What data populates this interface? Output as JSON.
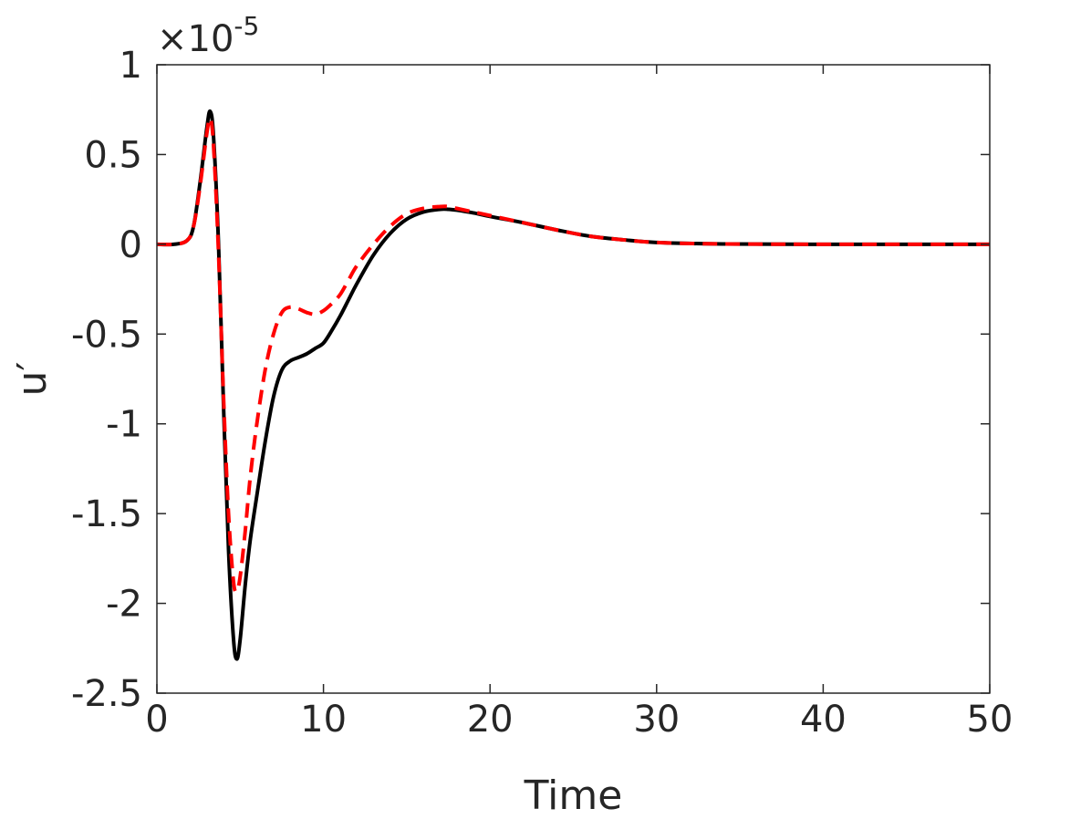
{
  "chart_data": {
    "type": "line",
    "xlabel": "Time",
    "ylabel": "u′",
    "xlim": [
      0,
      50
    ],
    "ylim": [
      -2.5,
      1
    ],
    "y_scale_factor": "×10",
    "y_scale_exponent": "-5",
    "x_ticks": [
      0,
      10,
      20,
      30,
      40,
      50
    ],
    "x_tick_labels": [
      "0",
      "10",
      "20",
      "30",
      "40",
      "50"
    ],
    "y_ticks": [
      1,
      0.5,
      0,
      -0.5,
      -1,
      -1.5,
      -2,
      -2.5
    ],
    "y_tick_labels": [
      "1",
      "0.5",
      "0",
      "-0.5",
      "-1",
      "-1.5",
      "-2",
      "-2.5"
    ],
    "grid": false,
    "legend": null,
    "series": [
      {
        "color": "#000000",
        "style": "solid",
        "x": [
          0,
          1,
          1.8,
          2.2,
          2.6,
          3.0,
          3.2,
          3.4,
          3.7,
          4.0,
          4.3,
          4.6,
          4.8,
          5.0,
          5.3,
          5.6,
          6.0,
          6.5,
          7.0,
          7.5,
          8.0,
          8.5,
          9.0,
          9.5,
          10.0,
          10.5,
          11.0,
          11.5,
          12.0,
          13.0,
          14.0,
          15.0,
          16.0,
          17.0,
          17.5,
          18.0,
          19.0,
          20.0,
          22.0,
          24.0,
          26.0,
          28.0,
          30.0,
          33.0,
          36.0,
          40.0,
          45.0,
          50.0
        ],
        "y": [
          0,
          0,
          0.02,
          0.1,
          0.35,
          0.65,
          0.74,
          0.6,
          0.0,
          -0.9,
          -1.7,
          -2.2,
          -2.31,
          -2.2,
          -1.9,
          -1.65,
          -1.4,
          -1.1,
          -0.85,
          -0.7,
          -0.65,
          -0.63,
          -0.61,
          -0.58,
          -0.55,
          -0.48,
          -0.4,
          -0.31,
          -0.22,
          -0.06,
          0.06,
          0.14,
          0.18,
          0.195,
          0.195,
          0.19,
          0.175,
          0.155,
          0.12,
          0.08,
          0.045,
          0.025,
          0.01,
          0.003,
          0.001,
          0.0,
          0.0,
          0.0
        ]
      },
      {
        "color": "#ff0000",
        "style": "dashed",
        "x": [
          0,
          1,
          1.8,
          2.2,
          2.6,
          3.0,
          3.2,
          3.4,
          3.7,
          4.0,
          4.3,
          4.6,
          4.8,
          5.0,
          5.3,
          5.6,
          6.0,
          6.5,
          7.0,
          7.5,
          8.0,
          8.5,
          9.0,
          9.5,
          10.0,
          10.5,
          11.0,
          11.5,
          12.0,
          13.0,
          14.0,
          15.0,
          16.0,
          17.0,
          17.5,
          18.0,
          19.0,
          20.0,
          22.0,
          24.0,
          26.0,
          28.0,
          30.0,
          33.0,
          36.0,
          40.0,
          45.0,
          50.0
        ],
        "y": [
          0,
          0,
          0.02,
          0.1,
          0.33,
          0.62,
          0.7,
          0.55,
          -0.05,
          -0.85,
          -1.5,
          -1.88,
          -1.93,
          -1.85,
          -1.6,
          -1.3,
          -1.0,
          -0.7,
          -0.5,
          -0.38,
          -0.35,
          -0.36,
          -0.38,
          -0.39,
          -0.37,
          -0.33,
          -0.28,
          -0.2,
          -0.12,
          0.0,
          0.1,
          0.17,
          0.2,
          0.21,
          0.21,
          0.2,
          0.18,
          0.16,
          0.12,
          0.08,
          0.045,
          0.025,
          0.01,
          0.003,
          0.001,
          0.0,
          0.0,
          0.0
        ]
      }
    ]
  }
}
